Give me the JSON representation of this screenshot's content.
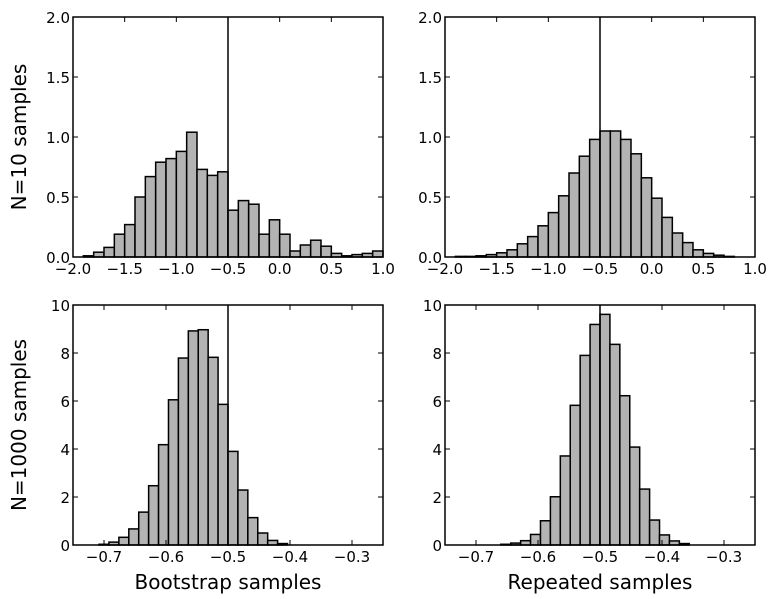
{
  "colors": {
    "bar_fill": "#b3b3b3",
    "bar_edge": "#000000",
    "ref_line": "#000000"
  },
  "row_labels": [
    "N=10 samples",
    "N=1000 samples"
  ],
  "col_labels": [
    "Bootstrap samples",
    "Repeated samples"
  ],
  "chart_data": [
    {
      "type": "bar",
      "subtype": "histogram",
      "xlim": [
        -2.0,
        1.0
      ],
      "ylim": [
        0,
        2.0
      ],
      "xticks": [
        "−2.0",
        "−1.5",
        "−1.0",
        "−0.5",
        "0.0",
        "0.5",
        "1.0"
      ],
      "xtick_values": [
        -2.0,
        -1.5,
        -1.0,
        -0.5,
        0.0,
        0.5,
        1.0
      ],
      "yticks": [
        "0.0",
        "0.5",
        "1.0",
        "1.5",
        "2.0"
      ],
      "ytick_values": [
        0,
        0.5,
        1.0,
        1.5,
        2.0
      ],
      "bin_start": -1.9,
      "bin_width": 0.1,
      "values": [
        0.01,
        0.04,
        0.08,
        0.19,
        0.27,
        0.5,
        0.67,
        0.79,
        0.82,
        0.88,
        1.04,
        0.73,
        0.68,
        0.71,
        0.39,
        0.47,
        0.44,
        0.19,
        0.31,
        0.19,
        0.05,
        0.1,
        0.14,
        0.09,
        0.03,
        0.01,
        0.02,
        0.03,
        0.05
      ],
      "vline": -0.5
    },
    {
      "type": "bar",
      "subtype": "histogram",
      "xlim": [
        -2.0,
        1.0
      ],
      "ylim": [
        0,
        2.0
      ],
      "xticks": [
        "−2.0",
        "−1.5",
        "−1.0",
        "−0.5",
        "0.0",
        "0.5",
        "1.0"
      ],
      "xtick_values": [
        -2.0,
        -1.5,
        -1.0,
        -0.5,
        0.0,
        0.5,
        1.0
      ],
      "yticks": [
        "0.0",
        "0.5",
        "1.0",
        "1.5",
        "2.0"
      ],
      "ytick_values": [
        0,
        0.5,
        1.0,
        1.5,
        2.0
      ],
      "bin_start": -1.9,
      "bin_width": 0.1,
      "values": [
        0.005,
        0.005,
        0.01,
        0.02,
        0.035,
        0.06,
        0.11,
        0.17,
        0.26,
        0.37,
        0.51,
        0.7,
        0.84,
        0.98,
        1.05,
        1.05,
        0.98,
        0.86,
        0.66,
        0.49,
        0.33,
        0.2,
        0.12,
        0.06,
        0.03,
        0.015,
        0.005
      ],
      "vline": -0.5
    },
    {
      "type": "bar",
      "subtype": "histogram",
      "xlim": [
        -0.75,
        -0.25
      ],
      "ylim": [
        0,
        10
      ],
      "xticks": [
        "−0.7",
        "−0.6",
        "−0.5",
        "−0.4",
        "−0.3"
      ],
      "xtick_values": [
        -0.7,
        -0.6,
        -0.5,
        -0.4,
        -0.3
      ],
      "yticks": [
        "0",
        "2",
        "4",
        "6",
        "8",
        "10"
      ],
      "ytick_values": [
        0,
        2,
        4,
        6,
        8,
        10
      ],
      "bin_start": -0.708,
      "bin_width": 0.016,
      "values": [
        0.03,
        0.12,
        0.32,
        0.67,
        1.37,
        2.47,
        4.18,
        6.05,
        7.79,
        8.92,
        8.97,
        7.82,
        5.86,
        3.9,
        2.29,
        1.14,
        0.5,
        0.19,
        0.06
      ],
      "vline": -0.5
    },
    {
      "type": "bar",
      "subtype": "histogram",
      "xlim": [
        -0.75,
        -0.25
      ],
      "ylim": [
        0,
        10
      ],
      "xticks": [
        "−0.7",
        "−0.6",
        "−0.5",
        "−0.4",
        "−0.3"
      ],
      "xtick_values": [
        -0.7,
        -0.6,
        -0.5,
        -0.4,
        -0.3
      ],
      "yticks": [
        "0",
        "2",
        "4",
        "6",
        "8",
        "10"
      ],
      "ytick_values": [
        0,
        2,
        4,
        6,
        8,
        10
      ],
      "bin_start": -0.66,
      "bin_width": 0.016,
      "values": [
        0.03,
        0.08,
        0.18,
        0.44,
        1.01,
        2.01,
        3.71,
        5.82,
        7.9,
        9.19,
        9.61,
        8.36,
        6.22,
        4.08,
        2.33,
        1.04,
        0.42,
        0.17,
        0.06
      ],
      "vline": -0.5
    }
  ]
}
